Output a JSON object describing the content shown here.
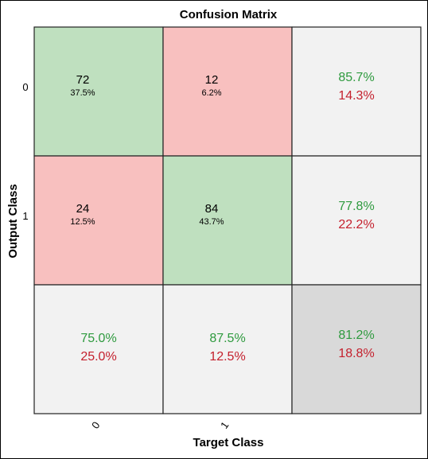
{
  "chart_data": {
    "type": "heatmap",
    "title": "Confusion Matrix",
    "xlabel": "Target Class",
    "ylabel": "Output Class",
    "x_ticks": [
      "0",
      "1"
    ],
    "y_ticks": [
      "0",
      "1"
    ],
    "cells": [
      [
        {
          "count": "72",
          "percent": "37.5%"
        },
        {
          "count": "12",
          "percent": "6.2%"
        }
      ],
      [
        {
          "count": "24",
          "percent": "12.5%"
        },
        {
          "count": "84",
          "percent": "43.7%"
        }
      ]
    ],
    "row_summary": [
      {
        "correct": "85.7%",
        "incorrect": "14.3%"
      },
      {
        "correct": "77.8%",
        "incorrect": "22.2%"
      }
    ],
    "column_summary": [
      {
        "correct": "75.0%",
        "incorrect": "25.0%"
      },
      {
        "correct": "87.5%",
        "incorrect": "12.5%"
      }
    ],
    "overall": {
      "correct": "81.2%",
      "incorrect": "18.8%"
    },
    "colors": {
      "correct_fill": "#bfe0bf",
      "incorrect_fill": "#f8c0bf",
      "summary_fill": "#f2f2f2",
      "overall_fill": "#d9d9d9",
      "correct_text": "#2e9a3e",
      "incorrect_text": "#c4202d"
    }
  }
}
